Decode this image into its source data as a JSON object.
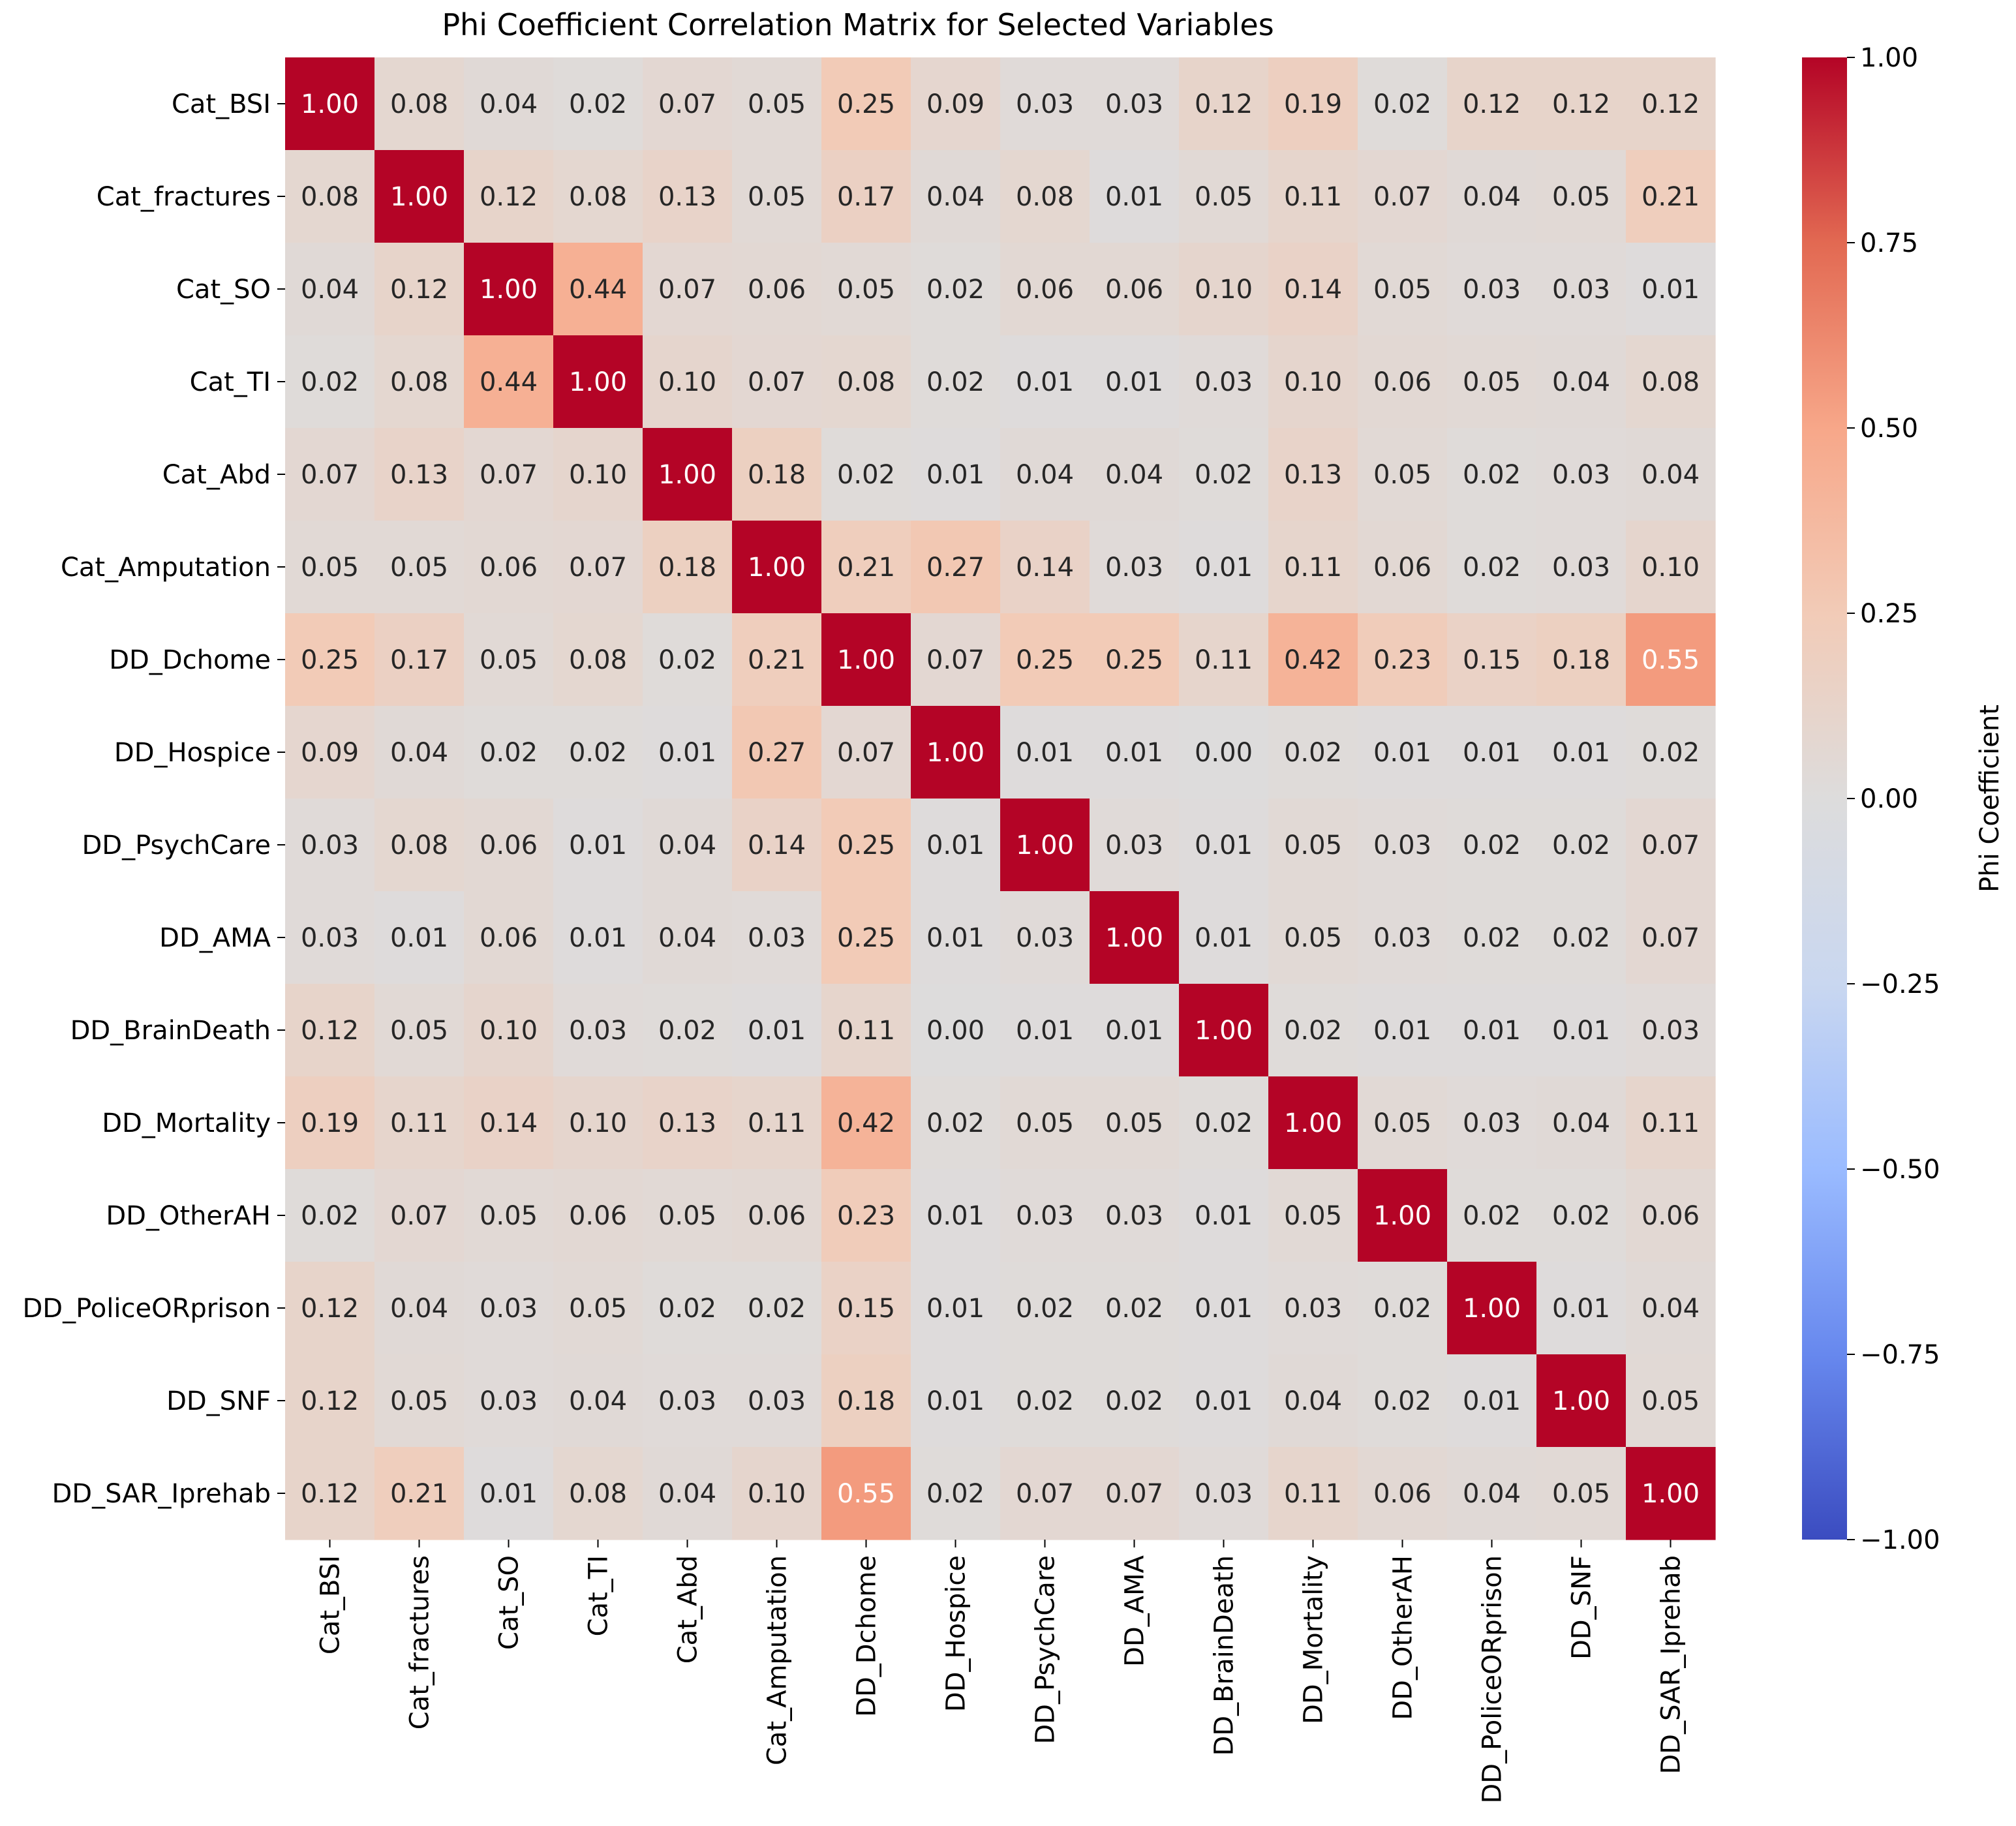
{
  "chart_data": {
    "type": "heatmap",
    "title": "Phi Coefficient Correlation Matrix for Selected Variables",
    "xlabel": "",
    "ylabel": "",
    "labels": [
      "Cat_BSI",
      "Cat_fractures",
      "Cat_SO",
      "Cat_TI",
      "Cat_Abd",
      "Cat_Amputation",
      "DD_Dchome",
      "DD_Hospice",
      "DD_PsychCare",
      "DD_AMA",
      "DD_BrainDeath",
      "DD_Mortality",
      "DD_OtherAH",
      "DD_PoliceORprison",
      "DD_SNF",
      "DD_SAR_Iprehab"
    ],
    "matrix": [
      [
        1.0,
        0.08,
        0.04,
        0.02,
        0.07,
        0.05,
        0.25,
        0.09,
        0.03,
        0.03,
        0.12,
        0.19,
        0.02,
        0.12,
        0.12,
        0.12
      ],
      [
        0.08,
        1.0,
        0.12,
        0.08,
        0.13,
        0.05,
        0.17,
        0.04,
        0.08,
        0.01,
        0.05,
        0.11,
        0.07,
        0.04,
        0.05,
        0.21
      ],
      [
        0.04,
        0.12,
        1.0,
        0.44,
        0.07,
        0.06,
        0.05,
        0.02,
        0.06,
        0.06,
        0.1,
        0.14,
        0.05,
        0.03,
        0.03,
        0.01
      ],
      [
        0.02,
        0.08,
        0.44,
        1.0,
        0.1,
        0.07,
        0.08,
        0.02,
        0.01,
        0.01,
        0.03,
        0.1,
        0.06,
        0.05,
        0.04,
        0.08
      ],
      [
        0.07,
        0.13,
        0.07,
        0.1,
        1.0,
        0.18,
        0.02,
        0.01,
        0.04,
        0.04,
        0.02,
        0.13,
        0.05,
        0.02,
        0.03,
        0.04
      ],
      [
        0.05,
        0.05,
        0.06,
        0.07,
        0.18,
        1.0,
        0.21,
        0.27,
        0.14,
        0.03,
        0.01,
        0.11,
        0.06,
        0.02,
        0.03,
        0.1
      ],
      [
        0.25,
        0.17,
        0.05,
        0.08,
        0.02,
        0.21,
        1.0,
        0.07,
        0.25,
        0.25,
        0.11,
        0.42,
        0.23,
        0.15,
        0.18,
        0.55
      ],
      [
        0.09,
        0.04,
        0.02,
        0.02,
        0.01,
        0.27,
        0.07,
        1.0,
        0.01,
        0.01,
        0.0,
        0.02,
        0.01,
        0.01,
        0.01,
        0.02
      ],
      [
        0.03,
        0.08,
        0.06,
        0.01,
        0.04,
        0.14,
        0.25,
        0.01,
        1.0,
        0.03,
        0.01,
        0.05,
        0.03,
        0.02,
        0.02,
        0.07
      ],
      [
        0.03,
        0.01,
        0.06,
        0.01,
        0.04,
        0.03,
        0.25,
        0.01,
        0.03,
        1.0,
        0.01,
        0.05,
        0.03,
        0.02,
        0.02,
        0.07
      ],
      [
        0.12,
        0.05,
        0.1,
        0.03,
        0.02,
        0.01,
        0.11,
        0.0,
        0.01,
        0.01,
        1.0,
        0.02,
        0.01,
        0.01,
        0.01,
        0.03
      ],
      [
        0.19,
        0.11,
        0.14,
        0.1,
        0.13,
        0.11,
        0.42,
        0.02,
        0.05,
        0.05,
        0.02,
        1.0,
        0.05,
        0.03,
        0.04,
        0.11
      ],
      [
        0.02,
        0.07,
        0.05,
        0.06,
        0.05,
        0.06,
        0.23,
        0.01,
        0.03,
        0.03,
        0.01,
        0.05,
        1.0,
        0.02,
        0.02,
        0.06
      ],
      [
        0.12,
        0.04,
        0.03,
        0.05,
        0.02,
        0.02,
        0.15,
        0.01,
        0.02,
        0.02,
        0.01,
        0.03,
        0.02,
        1.0,
        0.01,
        0.04
      ],
      [
        0.12,
        0.05,
        0.03,
        0.04,
        0.03,
        0.03,
        0.18,
        0.01,
        0.02,
        0.02,
        0.01,
        0.04,
        0.02,
        0.01,
        1.0,
        0.05
      ],
      [
        0.12,
        0.21,
        0.01,
        0.08,
        0.04,
        0.1,
        0.55,
        0.02,
        0.07,
        0.07,
        0.03,
        0.11,
        0.06,
        0.04,
        0.05,
        1.0
      ]
    ],
    "value_format": "0.00",
    "colorbar": {
      "label": "Phi Coefficient",
      "range": [
        -1.0,
        1.0
      ],
      "colormap": "coolwarm",
      "ticks": [
        1.0,
        0.75,
        0.5,
        0.25,
        0.0,
        -0.25,
        -0.5,
        -0.75,
        -1.0
      ],
      "tick_labels": [
        "1.00",
        "0.75",
        "0.50",
        "0.25",
        "0.00",
        "−0.25",
        "−0.50",
        "−0.75",
        "−1.00"
      ]
    },
    "colors": {
      "coolwarm_stops": [
        "#3b4cc0",
        "#6788ee",
        "#9abbff",
        "#c9d7f0",
        "#dddcdc",
        "#f2cbb7",
        "#f7a789",
        "#e26952",
        "#b40426"
      ]
    }
  }
}
